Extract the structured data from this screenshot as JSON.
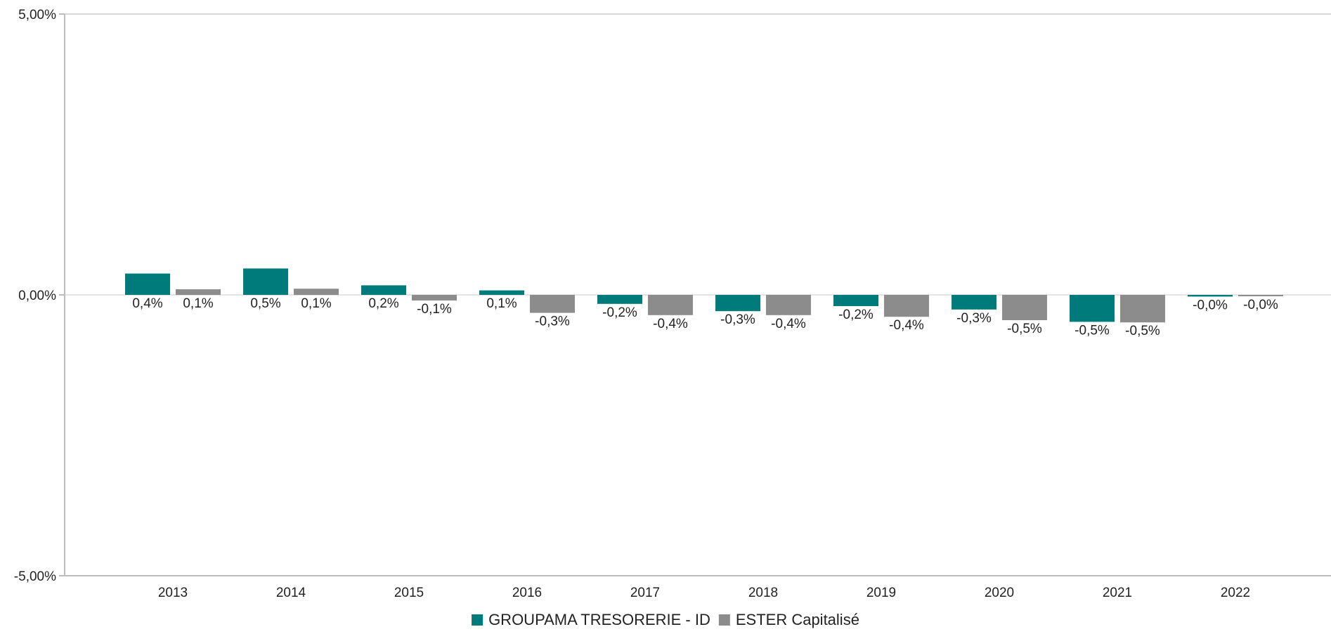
{
  "chart_data": {
    "type": "bar",
    "categories": [
      "2013",
      "2014",
      "2015",
      "2016",
      "2017",
      "2018",
      "2019",
      "2020",
      "2021",
      "2022"
    ],
    "series": [
      {
        "name": "GROUPAMA TRESORERIE - ID",
        "color": "#007b7b",
        "values": [
          0.38,
          0.47,
          0.17,
          0.08,
          -0.16,
          -0.29,
          -0.2,
          -0.26,
          -0.48,
          -0.03
        ],
        "labels": [
          "0,4%",
          "0,5%",
          "0,2%",
          "0,1%",
          "-0,2%",
          "-0,3%",
          "-0,2%",
          "-0,3%",
          "-0,5%",
          "-0,0%"
        ]
      },
      {
        "name": "ESTER Capitalisé",
        "color": "#8c8c8c",
        "values": [
          0.1,
          0.11,
          -0.1,
          -0.32,
          -0.36,
          -0.36,
          -0.39,
          -0.45,
          -0.49,
          -0.01
        ],
        "labels": [
          "0,1%",
          "0,1%",
          "-0,1%",
          "-0,3%",
          "-0,4%",
          "-0,4%",
          "-0,4%",
          "-0,5%",
          "-0,5%",
          "-0,0%"
        ]
      }
    ],
    "ylim": [
      -5,
      5
    ],
    "yticks": [
      5,
      0,
      -5
    ],
    "ytick_labels": [
      "5,00%",
      "0,00%",
      "-5,00%"
    ],
    "title": "",
    "xlabel": "",
    "ylabel": "",
    "grid": false,
    "legend_position": "bottom-center"
  }
}
